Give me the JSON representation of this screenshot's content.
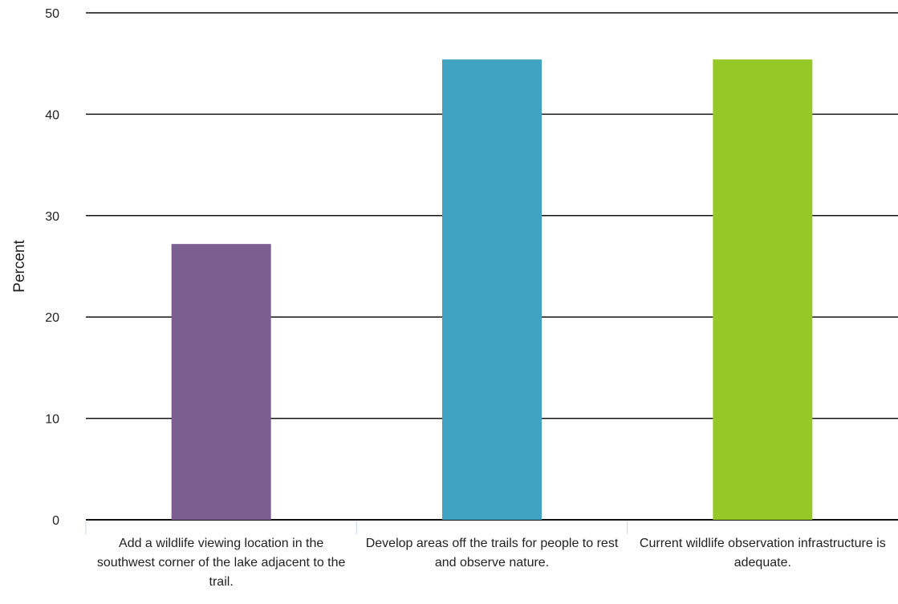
{
  "chart_data": {
    "type": "bar",
    "ylabel": "Percent",
    "xlabel": "",
    "ylim": [
      0,
      50
    ],
    "yticks": [
      0,
      10,
      20,
      30,
      40,
      50
    ],
    "grid": true,
    "categories": [
      "Add a wildlife viewing location in the southwest corner of the lake adjacent to the trail.",
      "Develop areas off the trails for people to rest and observe nature.",
      "Current wildlife observation infrastructure is adequate."
    ],
    "values": [
      27.2,
      45.4,
      45.4
    ],
    "colors": [
      "#7b5f8e",
      "#40a3c1",
      "#96c927"
    ]
  }
}
